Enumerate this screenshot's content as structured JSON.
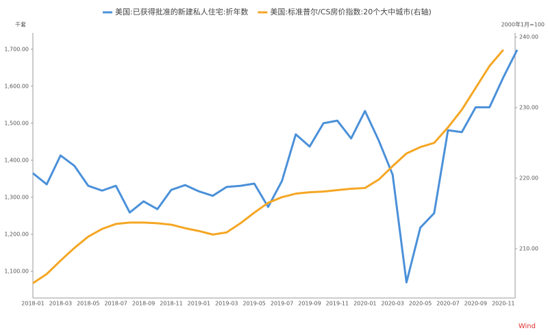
{
  "chart_data": {
    "type": "line",
    "legend_position": "top",
    "y_unit_label": "千套",
    "y2_unit_label": "2000年1月=100",
    "source": "Wind",
    "categories": [
      "2018-01",
      null,
      "2018-03",
      null,
      "2018-05",
      null,
      "2018-07",
      null,
      "2018-09",
      null,
      "2018-11",
      null,
      "2019-01",
      null,
      "2019-03",
      null,
      "2019-05",
      null,
      "2019-07",
      null,
      "2019-09",
      null,
      "2019-11",
      null,
      "2020-01",
      null,
      "2020-03",
      null,
      "2020-05",
      null,
      "2020-07",
      null,
      "2020-09",
      null,
      "2020-11",
      null
    ],
    "series": [
      {
        "name": "美国:已获得批准的新建私人住宅:折年数",
        "color": "#4a90d9",
        "axis": "y",
        "values": [
          1365,
          1335,
          1413,
          1385,
          1331,
          1318,
          1331,
          1259,
          1289,
          1268,
          1320,
          1333,
          1316,
          1304,
          1328,
          1331,
          1337,
          1274,
          1344,
          1470,
          1437,
          1500,
          1507,
          1459,
          1533,
          1453,
          1361,
          1070,
          1218,
          1257,
          1481,
          1476,
          1543,
          1543,
          1624,
          1698
        ]
      },
      {
        "name": "美国:标准普尔/CS房价指数:20个大中城市(右轴)",
        "color": "#f5a623",
        "axis": "y2",
        "values": [
          205.1,
          206.4,
          208.3,
          210.1,
          211.7,
          212.8,
          213.5,
          213.7,
          213.7,
          213.6,
          213.4,
          212.9,
          212.5,
          212.0,
          212.3,
          213.6,
          215.1,
          216.5,
          217.3,
          217.8,
          218.0,
          218.1,
          218.3,
          218.5,
          218.6,
          219.8,
          221.7,
          223.5,
          224.4,
          225.0,
          227.2,
          229.7,
          232.8,
          235.9,
          238.2,
          null
        ]
      }
    ],
    "ylim": [
      1028,
      1744
    ],
    "yticks": [
      {
        "value": 1100,
        "label": "1,100.00"
      },
      {
        "value": 1200,
        "label": "1,200.00"
      },
      {
        "value": 1300,
        "label": "1,300.00"
      },
      {
        "value": 1400,
        "label": "1,400.00"
      },
      {
        "value": 1500,
        "label": "1,500.00"
      },
      {
        "value": 1600,
        "label": "1,600.00"
      },
      {
        "value": 1700,
        "label": "1,700.00"
      }
    ],
    "y2lim": [
      203,
      240.6
    ],
    "y2ticks": [
      {
        "value": 210,
        "label": "210.00"
      },
      {
        "value": 220,
        "label": "220.00"
      },
      {
        "value": 230,
        "label": "230.00"
      },
      {
        "value": 240,
        "label": "240.00"
      }
    ]
  }
}
